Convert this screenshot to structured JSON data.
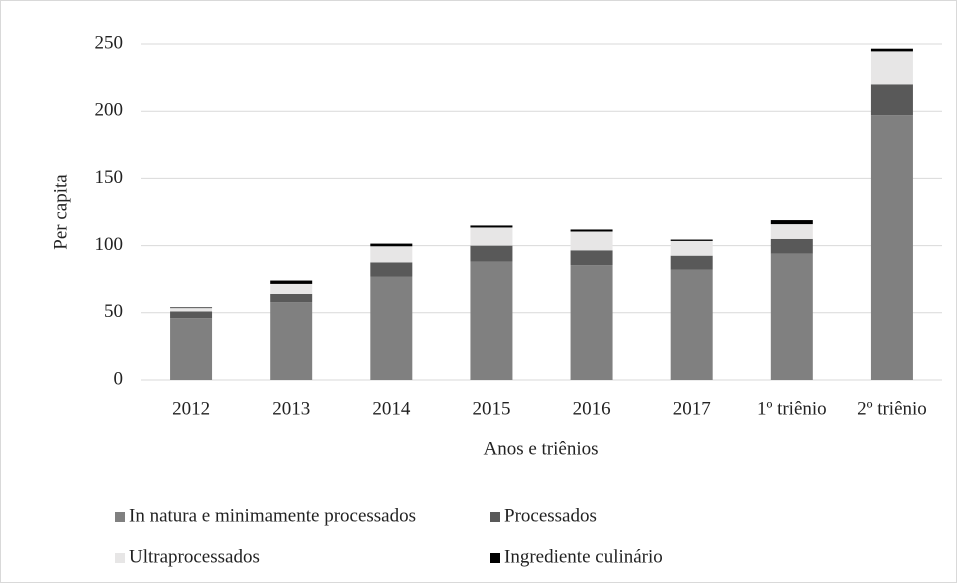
{
  "chart_data": {
    "type": "stacked_bar",
    "x_label": "Anos e triênios",
    "y_label": "Per capita",
    "categories": [
      "2012",
      "2013",
      "2014",
      "2015",
      "2016",
      "2017",
      "1º triênio",
      "2º triênio"
    ],
    "series": [
      {
        "name": "In natura e minimamente processados",
        "color": "#808080",
        "values": [
          46,
          58,
          77,
          88,
          85.5,
          82,
          94,
          197
        ]
      },
      {
        "name": "Processados",
        "color": "#595959",
        "values": [
          5,
          6,
          10.5,
          12,
          11,
          10.5,
          11,
          23
        ]
      },
      {
        "name": "Ultraprocessados",
        "color": "#e7e6e6",
        "values": [
          2.5,
          7.5,
          12,
          13.5,
          14,
          11,
          11,
          24.5
        ]
      },
      {
        "name": "Ingrediente culinário",
        "color": "#000000",
        "values": [
          0.5,
          2.5,
          2,
          1.5,
          1.5,
          1,
          3,
          2
        ]
      }
    ],
    "ylim": [
      0,
      250
    ],
    "yticks": [
      0,
      50,
      100,
      150,
      200,
      250
    ],
    "grid": true
  }
}
